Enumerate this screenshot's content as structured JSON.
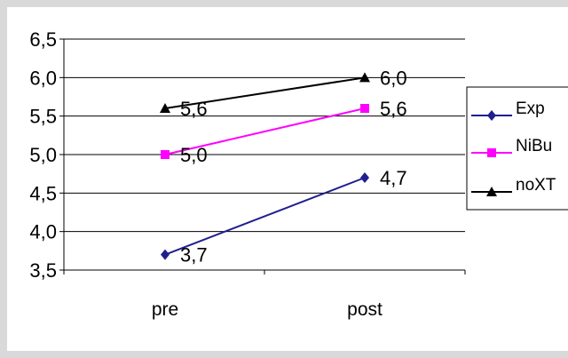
{
  "chart_data": {
    "type": "line",
    "categories": [
      "pre",
      "post"
    ],
    "ylim": [
      3.5,
      6.5
    ],
    "yticks": [
      "3,5",
      "4,0",
      "4,5",
      "5,0",
      "5,5",
      "6,0",
      "6,5"
    ],
    "ytick_values": [
      3.5,
      4.0,
      4.5,
      5.0,
      5.5,
      6.0,
      6.5
    ],
    "grid": true,
    "legend_position": "right",
    "series": [
      {
        "name": "Exp",
        "values": [
          3.7,
          4.7
        ],
        "labels": [
          "3,7",
          "4,7"
        ],
        "color": "#1f1f8f",
        "marker": "diamond"
      },
      {
        "name": "NiBu",
        "values": [
          5.0,
          5.6
        ],
        "labels": [
          "5,0",
          "5,6"
        ],
        "color": "#ff00ff",
        "marker": "square"
      },
      {
        "name": "noXT",
        "values": [
          5.6,
          6.0
        ],
        "labels": [
          "5,6",
          "6,0"
        ],
        "color": "#000000",
        "marker": "triangle"
      }
    ]
  }
}
